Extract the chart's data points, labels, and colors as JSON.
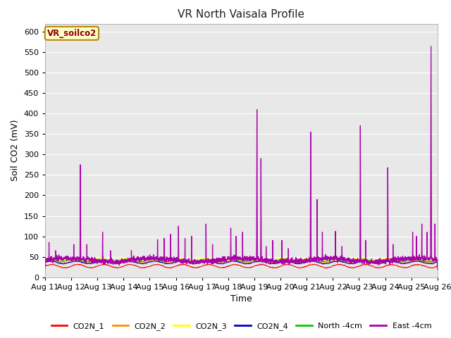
{
  "title": "VR North Vaisala Profile",
  "xlabel": "Time",
  "ylabel": "Soil CO2 (mV)",
  "ylim": [
    0,
    620
  ],
  "yticks": [
    0,
    50,
    100,
    150,
    200,
    250,
    300,
    350,
    400,
    450,
    500,
    550,
    600
  ],
  "annotation_text": "VR_soilco2",
  "annotation_color": "#8B0000",
  "annotation_bg": "#FFFFCC",
  "annotation_border": "#B8860B",
  "series_colors": {
    "CO2N_1": "#FF0000",
    "CO2N_2": "#FF8C00",
    "CO2N_3": "#FFFF00",
    "CO2N_4": "#0000CC",
    "North_4cm": "#00CC00",
    "East_4cm": "#AA00AA"
  },
  "legend_labels": [
    "CO2N_1",
    "CO2N_2",
    "CO2N_3",
    "CO2N_4",
    "North -4cm",
    "East -4cm"
  ],
  "bg_color": "#E8E8E8",
  "fig_color": "#FFFFFF",
  "grid_color": "#FFFFFF",
  "title_fontsize": 11,
  "axis_fontsize": 9,
  "tick_fontsize": 8
}
